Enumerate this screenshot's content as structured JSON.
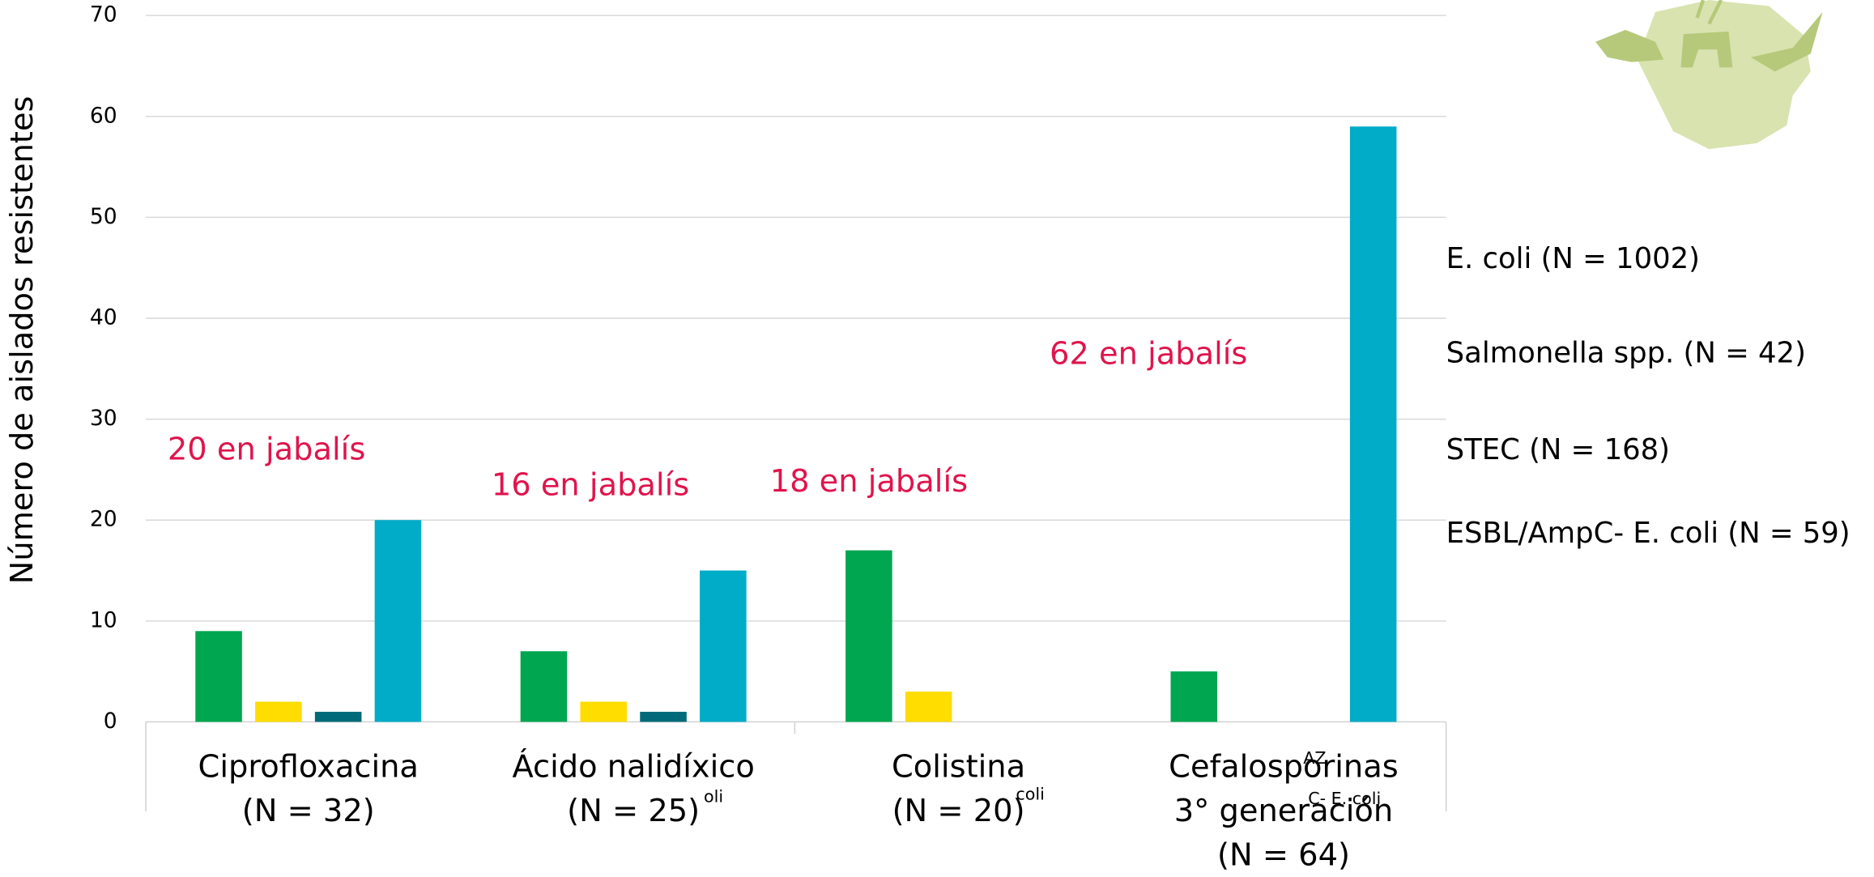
{
  "chart_data": {
    "type": "bar",
    "y_label": "Número de aislados resistentes",
    "categories": [
      [
        "Ciprofloxacina",
        "(N = 32)"
      ],
      [
        "Ácido nalidíxico",
        "(N = 25)"
      ],
      [
        "Colistina",
        "(N = 20)"
      ],
      [
        "Cefalosporinas",
        "3° generación",
        "(N = 64)"
      ]
    ],
    "series": [
      {
        "name": "E. coli (N = 1002)",
        "color": "#00a650",
        "values": [
          9,
          7,
          17,
          5
        ]
      },
      {
        "name": "Salmonella spp. (N = 42)",
        "color": "#ffdd00",
        "values": [
          2,
          2,
          3,
          null
        ]
      },
      {
        "name": "STEC (N = 168)",
        "color": "#006a7a",
        "values": [
          1,
          1,
          null,
          null
        ]
      },
      {
        "name": "ESBL/AmpC- E. coli (N = 59)",
        "color": "#00acc8",
        "values": [
          20,
          15,
          null,
          59
        ]
      }
    ],
    "annotations": [
      "20 en jabalís",
      "16 en jabalís",
      "18 en jabalís",
      "62 en jabalís"
    ],
    "annotation_color": "#e0144c",
    "overlap_fragments": [
      "oli",
      "coli",
      "AZ",
      "C- E. coli"
    ],
    "ylim": [
      0,
      70
    ],
    "yticks": [
      0,
      10,
      20,
      30,
      40,
      50,
      60,
      70
    ],
    "grid": true
  }
}
